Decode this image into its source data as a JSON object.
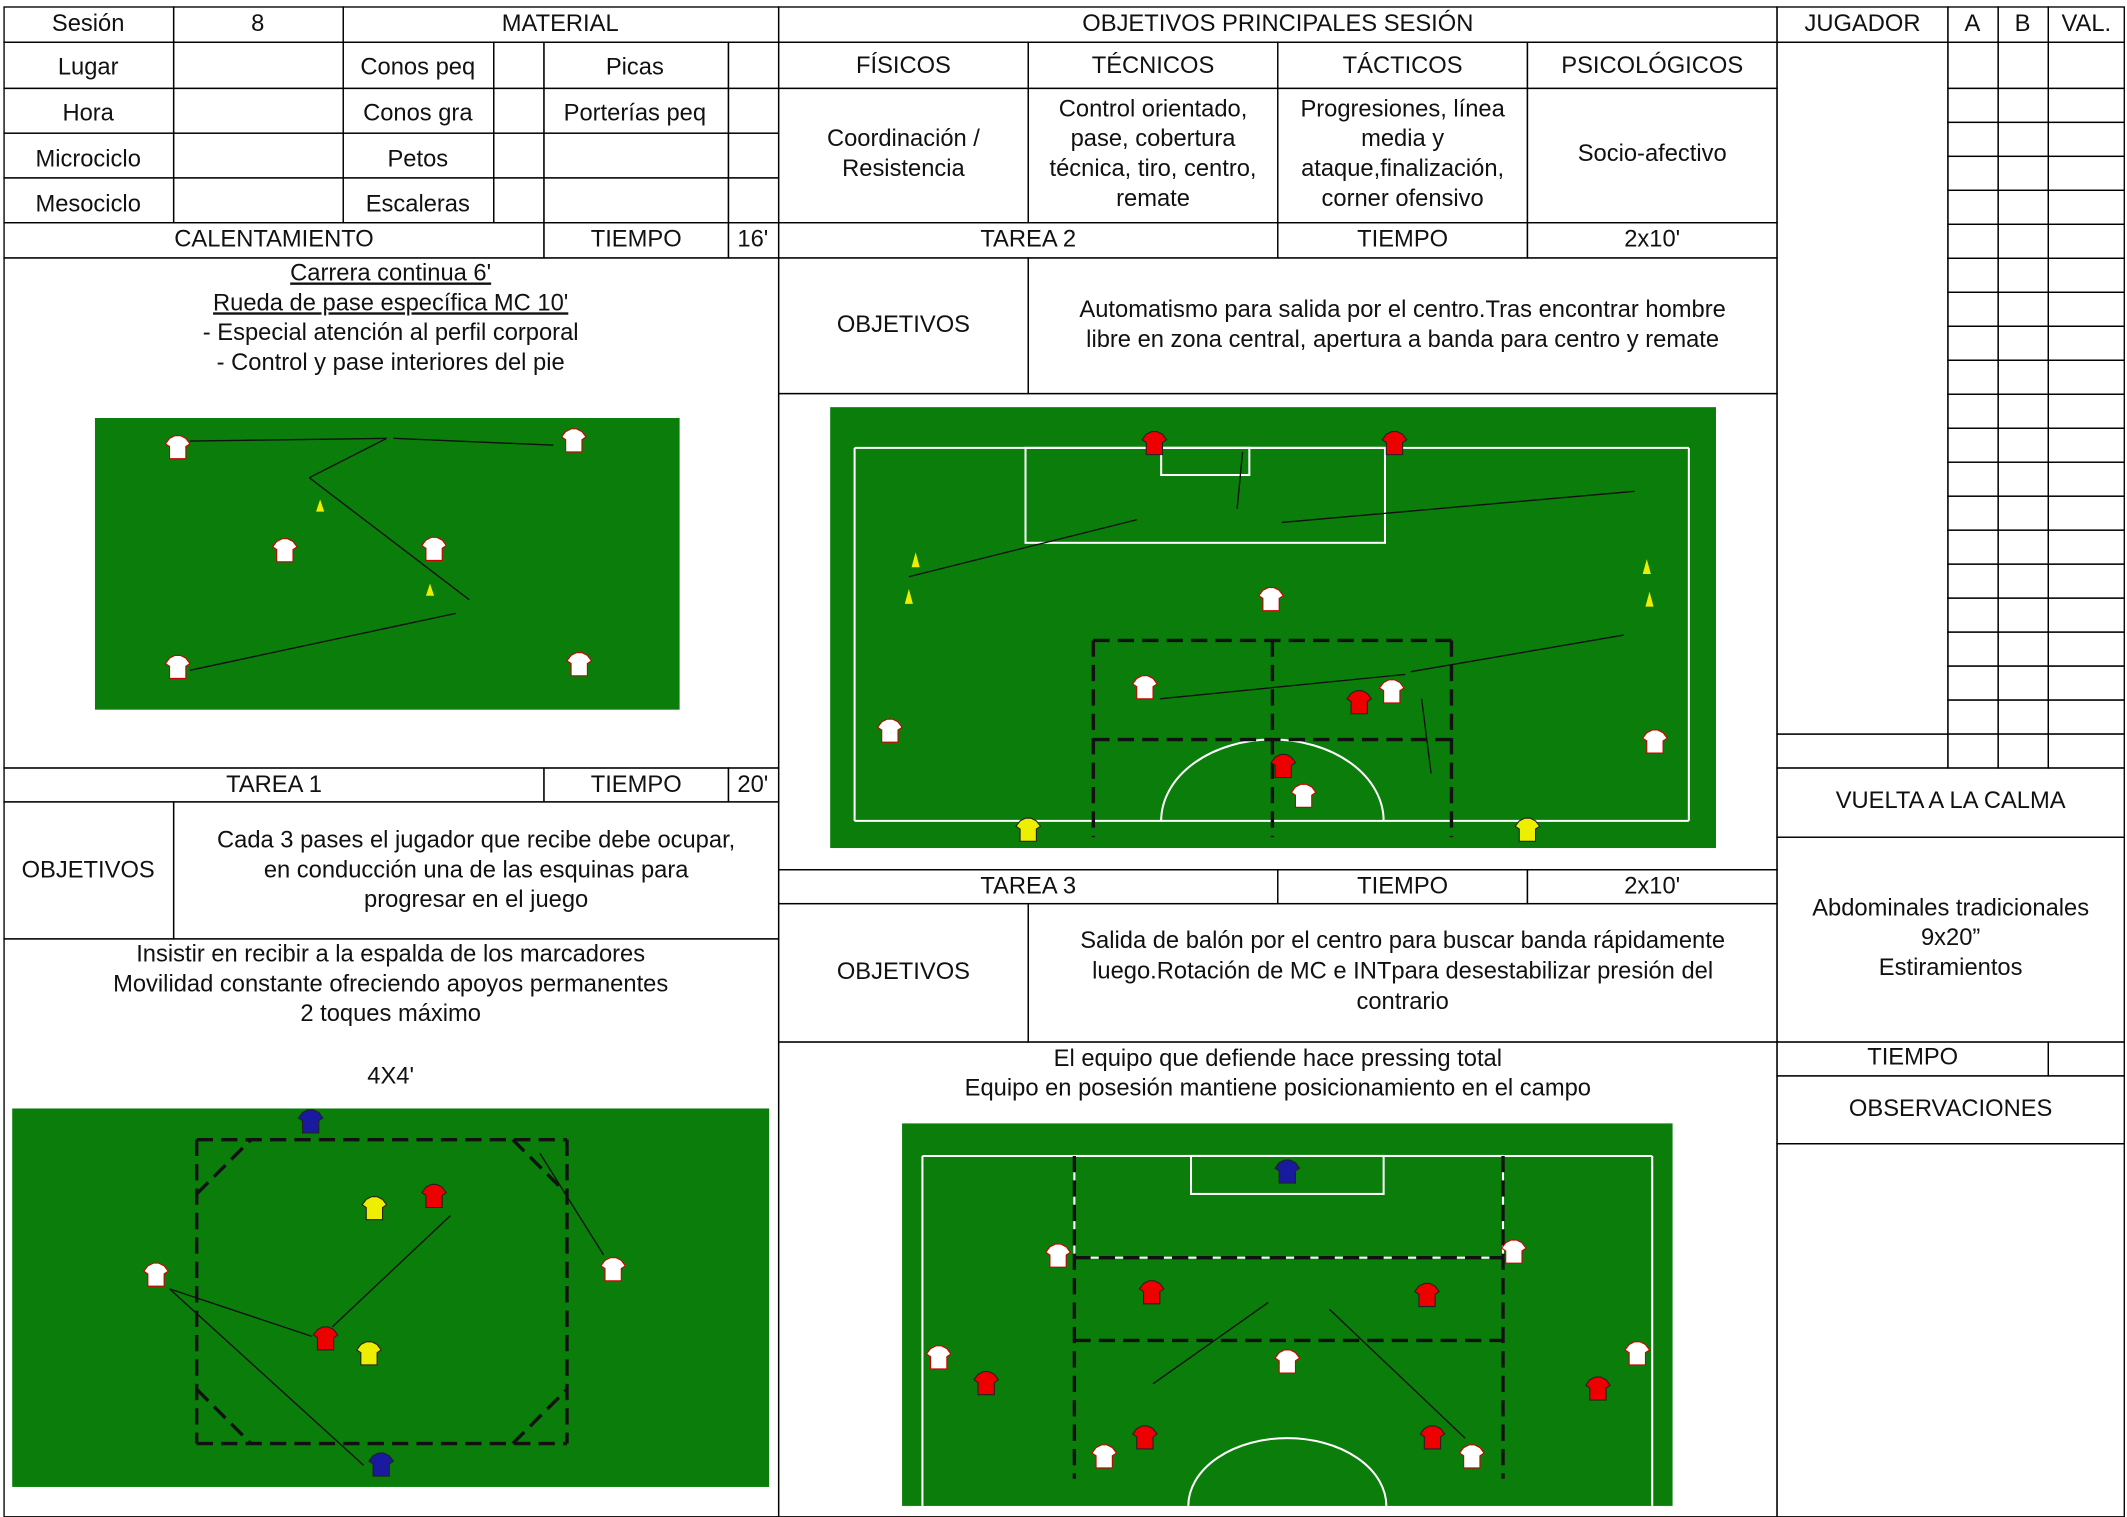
{
  "session": {
    "label": "Sesión",
    "number": "8"
  },
  "info_labels": [
    "Lugar",
    "Hora",
    "Microciclo",
    "Mesociclo"
  ],
  "material": {
    "title": "MATERIAL",
    "items": [
      "Conos peq",
      "Picas",
      "Conos gra",
      "Porterías peq",
      "Petos",
      "Escaleras"
    ]
  },
  "objectives": {
    "title": "OBJETIVOS PRINCIPALES SESIÓN",
    "headers": [
      "FÍSICOS",
      "TÉCNICOS",
      "TÁCTICOS",
      "PSICOLÓGICOS"
    ],
    "contents": [
      [
        "Coordinación /",
        "Resistencia"
      ],
      [
        "Control orientado,",
        "pase, cobertura",
        "técnica, tiro, centro,",
        "remate"
      ],
      [
        "Progresiones, línea",
        "media y",
        "ataque,finalización,",
        "corner ofensivo"
      ],
      [
        "Socio-afectivo"
      ]
    ]
  },
  "players": {
    "headers": [
      "JUGADOR",
      "A",
      "B",
      "VAL."
    ]
  },
  "warmup": {
    "title": "CALENTAMIENTO",
    "time_label": "TIEMPO",
    "time": "16'",
    "lines": [
      "Carrera continua 6'",
      "Rueda de pase específica MC 10'",
      "- Especial atención al perfil corporal",
      "- Control y pase interiores del pie"
    ]
  },
  "task1": {
    "title": "TAREA 1",
    "time_label": "TIEMPO",
    "time": "20'",
    "objectives_label": "OBJETIVOS",
    "objectives": [
      "Cada 3 pases el jugador que recibe debe ocupar,",
      "en conducción una de las esquinas para",
      "progresar en el juego"
    ],
    "description": [
      "Insistir en recibir a la espalda de los marcadores",
      "Movilidad constante ofreciendo apoyos permanentes",
      "2 toques máximo"
    ],
    "format": "4X4'"
  },
  "task2": {
    "title": "TAREA 2",
    "time_label": "TIEMPO",
    "time": "2x10'",
    "objectives_label": "OBJETIVOS",
    "objectives": [
      "Automatismo para salida por el centro.Tras encontrar hombre",
      "libre en zona central, apertura a banda para centro y remate"
    ]
  },
  "task3": {
    "title": "TAREA 3",
    "time_label": "TIEMPO",
    "time": "2x10'",
    "objectives_label": "OBJETIVOS",
    "objectives": [
      "Salida de balón por el centro para buscar banda rápidamente",
      "luego.Rotación de MC e INTpara desestabilizar presión del",
      "contrario"
    ],
    "description": [
      "El equipo que defiende hace pressing total",
      "Equipo en posesión mantiene posicionamiento en el campo"
    ]
  },
  "cool_down": {
    "title": "VUELTA A LA CALMA",
    "lines": [
      "Abdominales tradicionales",
      "9x20”",
      "Estiramientos"
    ],
    "time_label": "TIEMPO"
  },
  "observations": "OBSERVACIONES"
}
